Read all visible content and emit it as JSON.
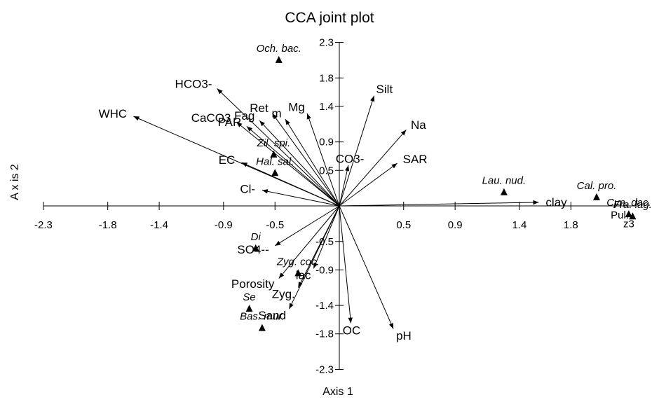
{
  "chart_data": {
    "type": "scatter",
    "title": "CCA joint plot",
    "xlabel": "Axis 1",
    "ylabel": "A x is 2",
    "xlim": [
      -2.3,
      2.3
    ],
    "ylim": [
      -2.3,
      2.3
    ],
    "x_ticks": [
      "-2.3",
      "-1.8",
      "-1.4",
      "-0.9",
      "-0.5",
      "0.5",
      "0.9",
      "1.4",
      "1.8"
    ],
    "y_ticks": [
      "2.3",
      "1.8",
      "1.4",
      "0.9",
      "0.5",
      "-0.5",
      "-0.9",
      "-1.4",
      "-1.8",
      "-2.3"
    ],
    "series": [
      {
        "type": "biplot_vectors",
        "points": [
          {
            "label": "HCO3-",
            "x": -0.95,
            "y": 1.65
          },
          {
            "label": "WHC",
            "x": -1.6,
            "y": 1.26
          },
          {
            "label": "CaCO3",
            "x": -0.8,
            "y": 1.18
          },
          {
            "label": "PAR",
            "x": -0.72,
            "y": 1.12
          },
          {
            "label": "Fag",
            "x": -0.62,
            "y": 1.2
          },
          {
            "label": "Ret",
            "x": -0.52,
            "y": 1.3
          },
          {
            "label": "m",
            "x": -0.42,
            "y": 1.22
          },
          {
            "label": "Mg",
            "x": -0.25,
            "y": 1.3
          },
          {
            "label": "Silt",
            "x": 0.27,
            "y": 1.55
          },
          {
            "label": "Na",
            "x": 0.52,
            "y": 1.07
          },
          {
            "label": "CO3-",
            "x": 0.07,
            "y": 0.57
          },
          {
            "label": "SAR",
            "x": 0.45,
            "y": 0.6
          },
          {
            "label": "EC",
            "x": -0.76,
            "y": 0.61
          },
          {
            "label": "Cl-",
            "x": -0.6,
            "y": 0.22
          },
          {
            "label": "clay",
            "x": 1.55,
            "y": 0.05
          },
          {
            "label": "SO4--",
            "x": -0.5,
            "y": -0.56
          },
          {
            "label": "Porosity",
            "x": -0.47,
            "y": -1.02
          },
          {
            "label": "Sand",
            "x": -0.39,
            "y": -1.45
          },
          {
            "label": "Zyg.",
            "x": -0.32,
            "y": -1.15
          },
          {
            "label": "lac",
            "x": -0.2,
            "y": -0.88
          },
          {
            "label": "OC",
            "x": 0.09,
            "y": -1.65
          },
          {
            "label": "pH",
            "x": 0.42,
            "y": -1.73
          }
        ]
      },
      {
        "type": "species_points",
        "points": [
          {
            "label": "Och. bac.",
            "x": -0.47,
            "y": 2.05
          },
          {
            "label": "Zil. spi.",
            "x": -0.51,
            "y": 0.72
          },
          {
            "label": "Hal. sal.",
            "x": -0.5,
            "y": 0.46
          },
          {
            "label": "Lau. nud.",
            "x": 1.28,
            "y": 0.19
          },
          {
            "label": "Cal. pro.",
            "x": 2.0,
            "y": 0.12
          },
          {
            "label": "Cyn. dac.",
            "x": 2.25,
            "y": -0.12
          },
          {
            "label": "Fra. lag.",
            "x": 2.28,
            "y": -0.15
          },
          {
            "label": "Di",
            "x": -0.65,
            "y": -0.6
          },
          {
            "label": "Zyg. coc.",
            "x": -0.32,
            "y": -0.95
          },
          {
            "label": "Se",
            "x": -0.7,
            "y": -1.45
          },
          {
            "label": "Bas. mur.",
            "x": -0.6,
            "y": -1.72
          }
        ]
      }
    ],
    "annotations": [
      {
        "text": "z3",
        "x": 2.25,
        "y": -0.2
      },
      {
        "text": "Pul.",
        "x": 2.18,
        "y": -0.08
      }
    ]
  }
}
